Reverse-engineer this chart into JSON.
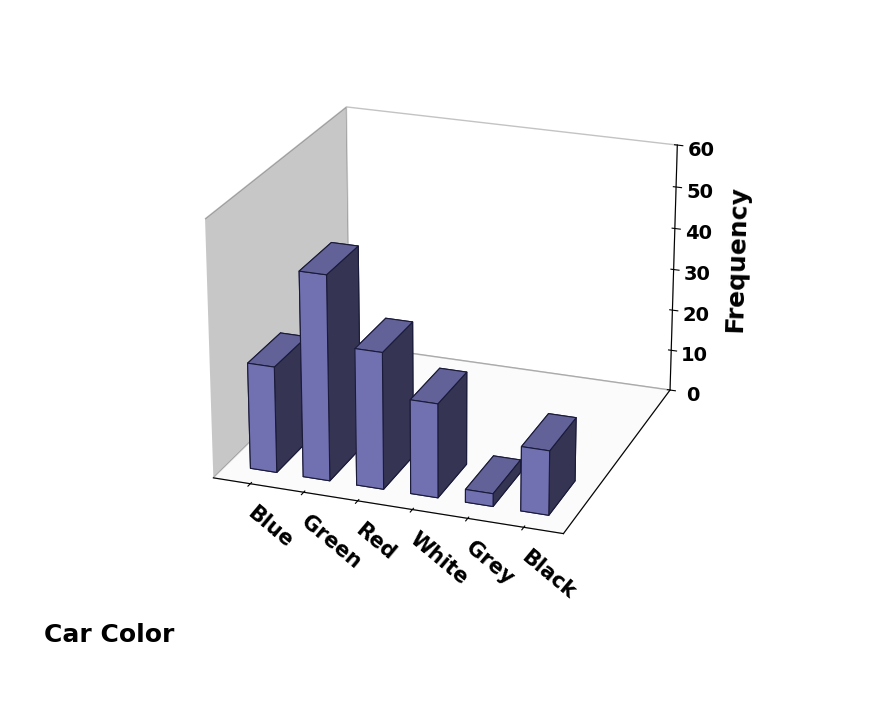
{
  "categories": [
    "Blue",
    "Green",
    "Red",
    "White",
    "Grey",
    "Black"
  ],
  "values": [
    25,
    48,
    32,
    22,
    3,
    15
  ],
  "bar_color": "#8080C8",
  "bar_edge_color": "#1a1a3a",
  "floor_color": "#909090",
  "wall_color": "#F0F0F0",
  "title": "",
  "ylabel": "Frequency",
  "xlabel": "Car Color",
  "ylim": [
    0,
    60
  ],
  "yticks": [
    0,
    10,
    20,
    30,
    40,
    50,
    60
  ],
  "bar_width": 0.5,
  "bar_depth": 0.5,
  "ylabel_fontsize": 18,
  "xlabel_fontsize": 18,
  "tick_fontsize": 14,
  "label_fontsize": 15,
  "elev": 22,
  "azim": -70
}
